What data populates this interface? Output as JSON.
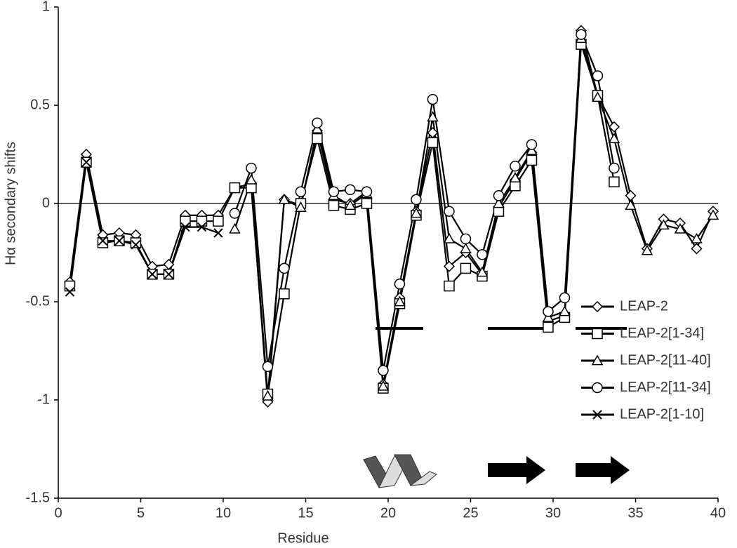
{
  "chart_data": {
    "type": "line",
    "x_label": "Residue",
    "y_label": "Hα secondary shifts",
    "x": [
      0.7,
      1.7,
      2.7,
      3.7,
      4.7,
      5.7,
      6.7,
      7.7,
      8.7,
      9.7,
      10.7,
      11.7,
      12.7,
      13.7,
      14.7,
      15.7,
      16.7,
      17.7,
      18.7,
      19.7,
      20.7,
      21.7,
      22.7,
      23.7,
      24.7,
      25.7,
      26.7,
      27.7,
      28.7,
      29.7,
      30.7,
      31.7,
      32.7,
      33.7,
      34.7,
      35.7,
      36.7,
      37.7,
      38.7,
      39.7
    ],
    "series": [
      {
        "name": "LEAP-2",
        "color": "#000000",
        "marker": "diamond",
        "values": [
          -0.4,
          0.25,
          -0.16,
          -0.15,
          -0.16,
          -0.32,
          -0.31,
          -0.06,
          -0.06,
          -0.06,
          0.08,
          0.1,
          -1.01,
          0.02,
          -0.01,
          0.37,
          0.02,
          0.0,
          0.06,
          -0.92,
          -0.48,
          -0.04,
          0.36,
          -0.32,
          -0.25,
          -0.36,
          -0.02,
          0.12,
          0.26,
          -0.6,
          -0.57,
          0.88,
          0.55,
          0.39,
          0.04,
          -0.23,
          -0.08,
          -0.1,
          -0.23,
          -0.04
        ]
      },
      {
        "name": "LEAP-2[1-34]",
        "color": "#000000",
        "marker": "square",
        "values": [
          -0.42,
          0.21,
          -0.2,
          -0.19,
          -0.2,
          -0.36,
          -0.36,
          -0.09,
          -0.09,
          -0.09,
          0.08,
          0.08,
          -0.97,
          -0.46,
          0.0,
          0.33,
          -0.01,
          -0.03,
          0.0,
          -0.94,
          -0.51,
          -0.06,
          0.31,
          -0.42,
          -0.33,
          -0.37,
          -0.04,
          0.09,
          0.22,
          -0.63,
          -0.58,
          0.81,
          0.55,
          0.11,
          null,
          null,
          null,
          null,
          null,
          null
        ]
      },
      {
        "name": "LEAP-2[11-40]",
        "color": "#000000",
        "marker": "triangle",
        "values": [
          null,
          null,
          null,
          null,
          null,
          null,
          null,
          null,
          null,
          null,
          -0.13,
          0.12,
          -0.98,
          0.02,
          -0.02,
          0.38,
          0.04,
          -0.01,
          0.05,
          -0.93,
          -0.5,
          -0.05,
          0.44,
          -0.18,
          -0.23,
          -0.35,
          0.0,
          0.13,
          0.27,
          -0.58,
          -0.55,
          0.84,
          0.54,
          0.33,
          -0.01,
          -0.24,
          -0.11,
          -0.13,
          -0.18,
          -0.06
        ]
      },
      {
        "name": "LEAP-2[11-34]",
        "color": "#000000",
        "marker": "circle",
        "values": [
          null,
          null,
          null,
          null,
          null,
          null,
          null,
          null,
          null,
          null,
          -0.05,
          0.18,
          -0.83,
          -0.33,
          0.06,
          0.41,
          0.06,
          0.07,
          0.06,
          -0.85,
          -0.41,
          0.02,
          0.53,
          -0.04,
          -0.18,
          -0.26,
          0.04,
          0.19,
          0.3,
          -0.55,
          -0.48,
          0.86,
          0.65,
          0.18,
          null,
          null,
          null,
          null,
          null,
          null
        ]
      },
      {
        "name": "LEAP-2[1-10]",
        "color": "#000000",
        "marker": "cross",
        "values": [
          -0.45,
          0.21,
          -0.19,
          -0.19,
          -0.21,
          -0.36,
          -0.36,
          -0.12,
          -0.12,
          -0.15,
          null,
          null,
          null,
          null,
          null,
          null,
          null,
          null,
          null,
          null,
          null,
          null,
          null,
          null,
          null,
          null,
          null,
          null,
          null,
          null,
          null,
          null,
          null,
          null,
          null,
          null,
          null,
          null,
          null,
          null
        ]
      }
    ],
    "xlim": [
      0,
      40
    ],
    "xticks": [
      0,
      5,
      10,
      15,
      20,
      25,
      30,
      35,
      40
    ],
    "ylim": [
      -1.5,
      1
    ],
    "yticks": [
      1,
      0.5,
      0,
      -0.5,
      -1,
      -1.5
    ]
  }
}
